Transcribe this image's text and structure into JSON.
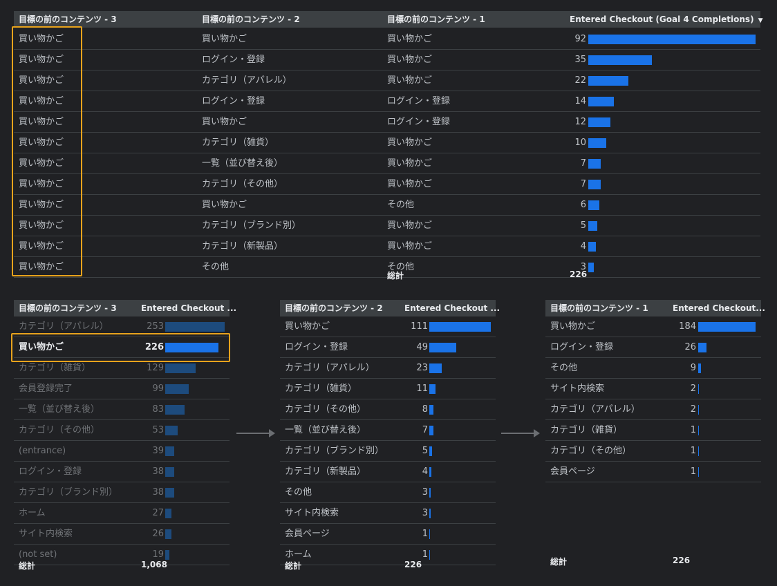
{
  "top": {
    "headers": [
      "目標の前のコンテンツ - 3",
      "目標の前のコンテンツ - 2",
      "目標の前のコンテンツ - 1",
      "Entered Checkout (Goal 4 Completions)"
    ],
    "sort_icon": "caret-down-icon",
    "rows": [
      {
        "c3": "買い物かご",
        "c2": "買い物かご",
        "c1": "買い物かご",
        "v": 92
      },
      {
        "c3": "買い物かご",
        "c2": "ログイン・登録",
        "c1": "買い物かご",
        "v": 35
      },
      {
        "c3": "買い物かご",
        "c2": "カテゴリ（アパレル）",
        "c1": "買い物かご",
        "v": 22
      },
      {
        "c3": "買い物かご",
        "c2": "ログイン・登録",
        "c1": "ログイン・登録",
        "v": 14
      },
      {
        "c3": "買い物かご",
        "c2": "買い物かご",
        "c1": "ログイン・登録",
        "v": 12
      },
      {
        "c3": "買い物かご",
        "c2": "カテゴリ（雑貨）",
        "c1": "買い物かご",
        "v": 10
      },
      {
        "c3": "買い物かご",
        "c2": "一覧（並び替え後）",
        "c1": "買い物かご",
        "v": 7
      },
      {
        "c3": "買い物かご",
        "c2": "カテゴリ（その他）",
        "c1": "買い物かご",
        "v": 7
      },
      {
        "c3": "買い物かご",
        "c2": "買い物かご",
        "c1": "その他",
        "v": 6
      },
      {
        "c3": "買い物かご",
        "c2": "カテゴリ（ブランド別）",
        "c1": "買い物かご",
        "v": 5
      },
      {
        "c3": "買い物かご",
        "c2": "カテゴリ（新製品）",
        "c1": "買い物かご",
        "v": 4
      },
      {
        "c3": "買い物かご",
        "c2": "その他",
        "c1": "その他",
        "v": 3
      }
    ],
    "total_label": "総計",
    "total_value": "226"
  },
  "t3": {
    "headers": [
      "目標の前のコンテンツ - 3",
      "Entered Checkout ..."
    ],
    "rows": [
      {
        "label": "カテゴリ（アパレル）",
        "v": 253,
        "state": "dim"
      },
      {
        "label": "買い物かご",
        "v": 226,
        "state": "bold"
      },
      {
        "label": "カテゴリ（雑貨）",
        "v": 129,
        "state": "dim"
      },
      {
        "label": "会員登録完了",
        "v": 99,
        "state": "dim"
      },
      {
        "label": "一覧（並び替え後）",
        "v": 83,
        "state": "dim"
      },
      {
        "label": "カテゴリ（その他）",
        "v": 53,
        "state": "dim"
      },
      {
        "label": "(entrance)",
        "v": 39,
        "state": "dim"
      },
      {
        "label": "ログイン・登録",
        "v": 38,
        "state": "dim"
      },
      {
        "label": "カテゴリ（ブランド別）",
        "v": 38,
        "state": "dim"
      },
      {
        "label": "ホーム",
        "v": 27,
        "state": "dim"
      },
      {
        "label": "サイト内検索",
        "v": 26,
        "state": "dim"
      },
      {
        "label": "(not set)",
        "v": 19,
        "state": "dim"
      }
    ],
    "total_label": "総計",
    "total_value": "1,068"
  },
  "t2": {
    "headers": [
      "目標の前のコンテンツ - 2",
      "Entered Checkout ..."
    ],
    "rows": [
      {
        "label": "買い物かご",
        "v": 111
      },
      {
        "label": "ログイン・登録",
        "v": 49
      },
      {
        "label": "カテゴリ（アパレル）",
        "v": 23
      },
      {
        "label": "カテゴリ（雑貨）",
        "v": 11
      },
      {
        "label": "カテゴリ（その他）",
        "v": 8
      },
      {
        "label": "一覧（並び替え後）",
        "v": 7
      },
      {
        "label": "カテゴリ（ブランド別）",
        "v": 5
      },
      {
        "label": "カテゴリ（新製品）",
        "v": 4
      },
      {
        "label": "その他",
        "v": 3
      },
      {
        "label": "サイト内検索",
        "v": 3
      },
      {
        "label": "会員ページ",
        "v": 1
      },
      {
        "label": "ホーム",
        "v": 1
      }
    ],
    "total_label": "総計",
    "total_value": "226"
  },
  "t1": {
    "headers": [
      "目標の前のコンテンツ - 1",
      "Entered Checkout..."
    ],
    "rows": [
      {
        "label": "買い物かご",
        "v": 184
      },
      {
        "label": "ログイン・登録",
        "v": 26
      },
      {
        "label": "その他",
        "v": 9
      },
      {
        "label": "サイト内検索",
        "v": 2
      },
      {
        "label": "カテゴリ（アパレル）",
        "v": 2
      },
      {
        "label": "カテゴリ（雑貨）",
        "v": 1
      },
      {
        "label": "カテゴリ（その他）",
        "v": 1
      },
      {
        "label": "会員ページ",
        "v": 1
      }
    ],
    "total_label": "総計",
    "total_value": "226"
  },
  "colors": {
    "bar": "#1a73e8",
    "bar_dim": "#1d4b7d",
    "highlight": "#e8a31c"
  }
}
